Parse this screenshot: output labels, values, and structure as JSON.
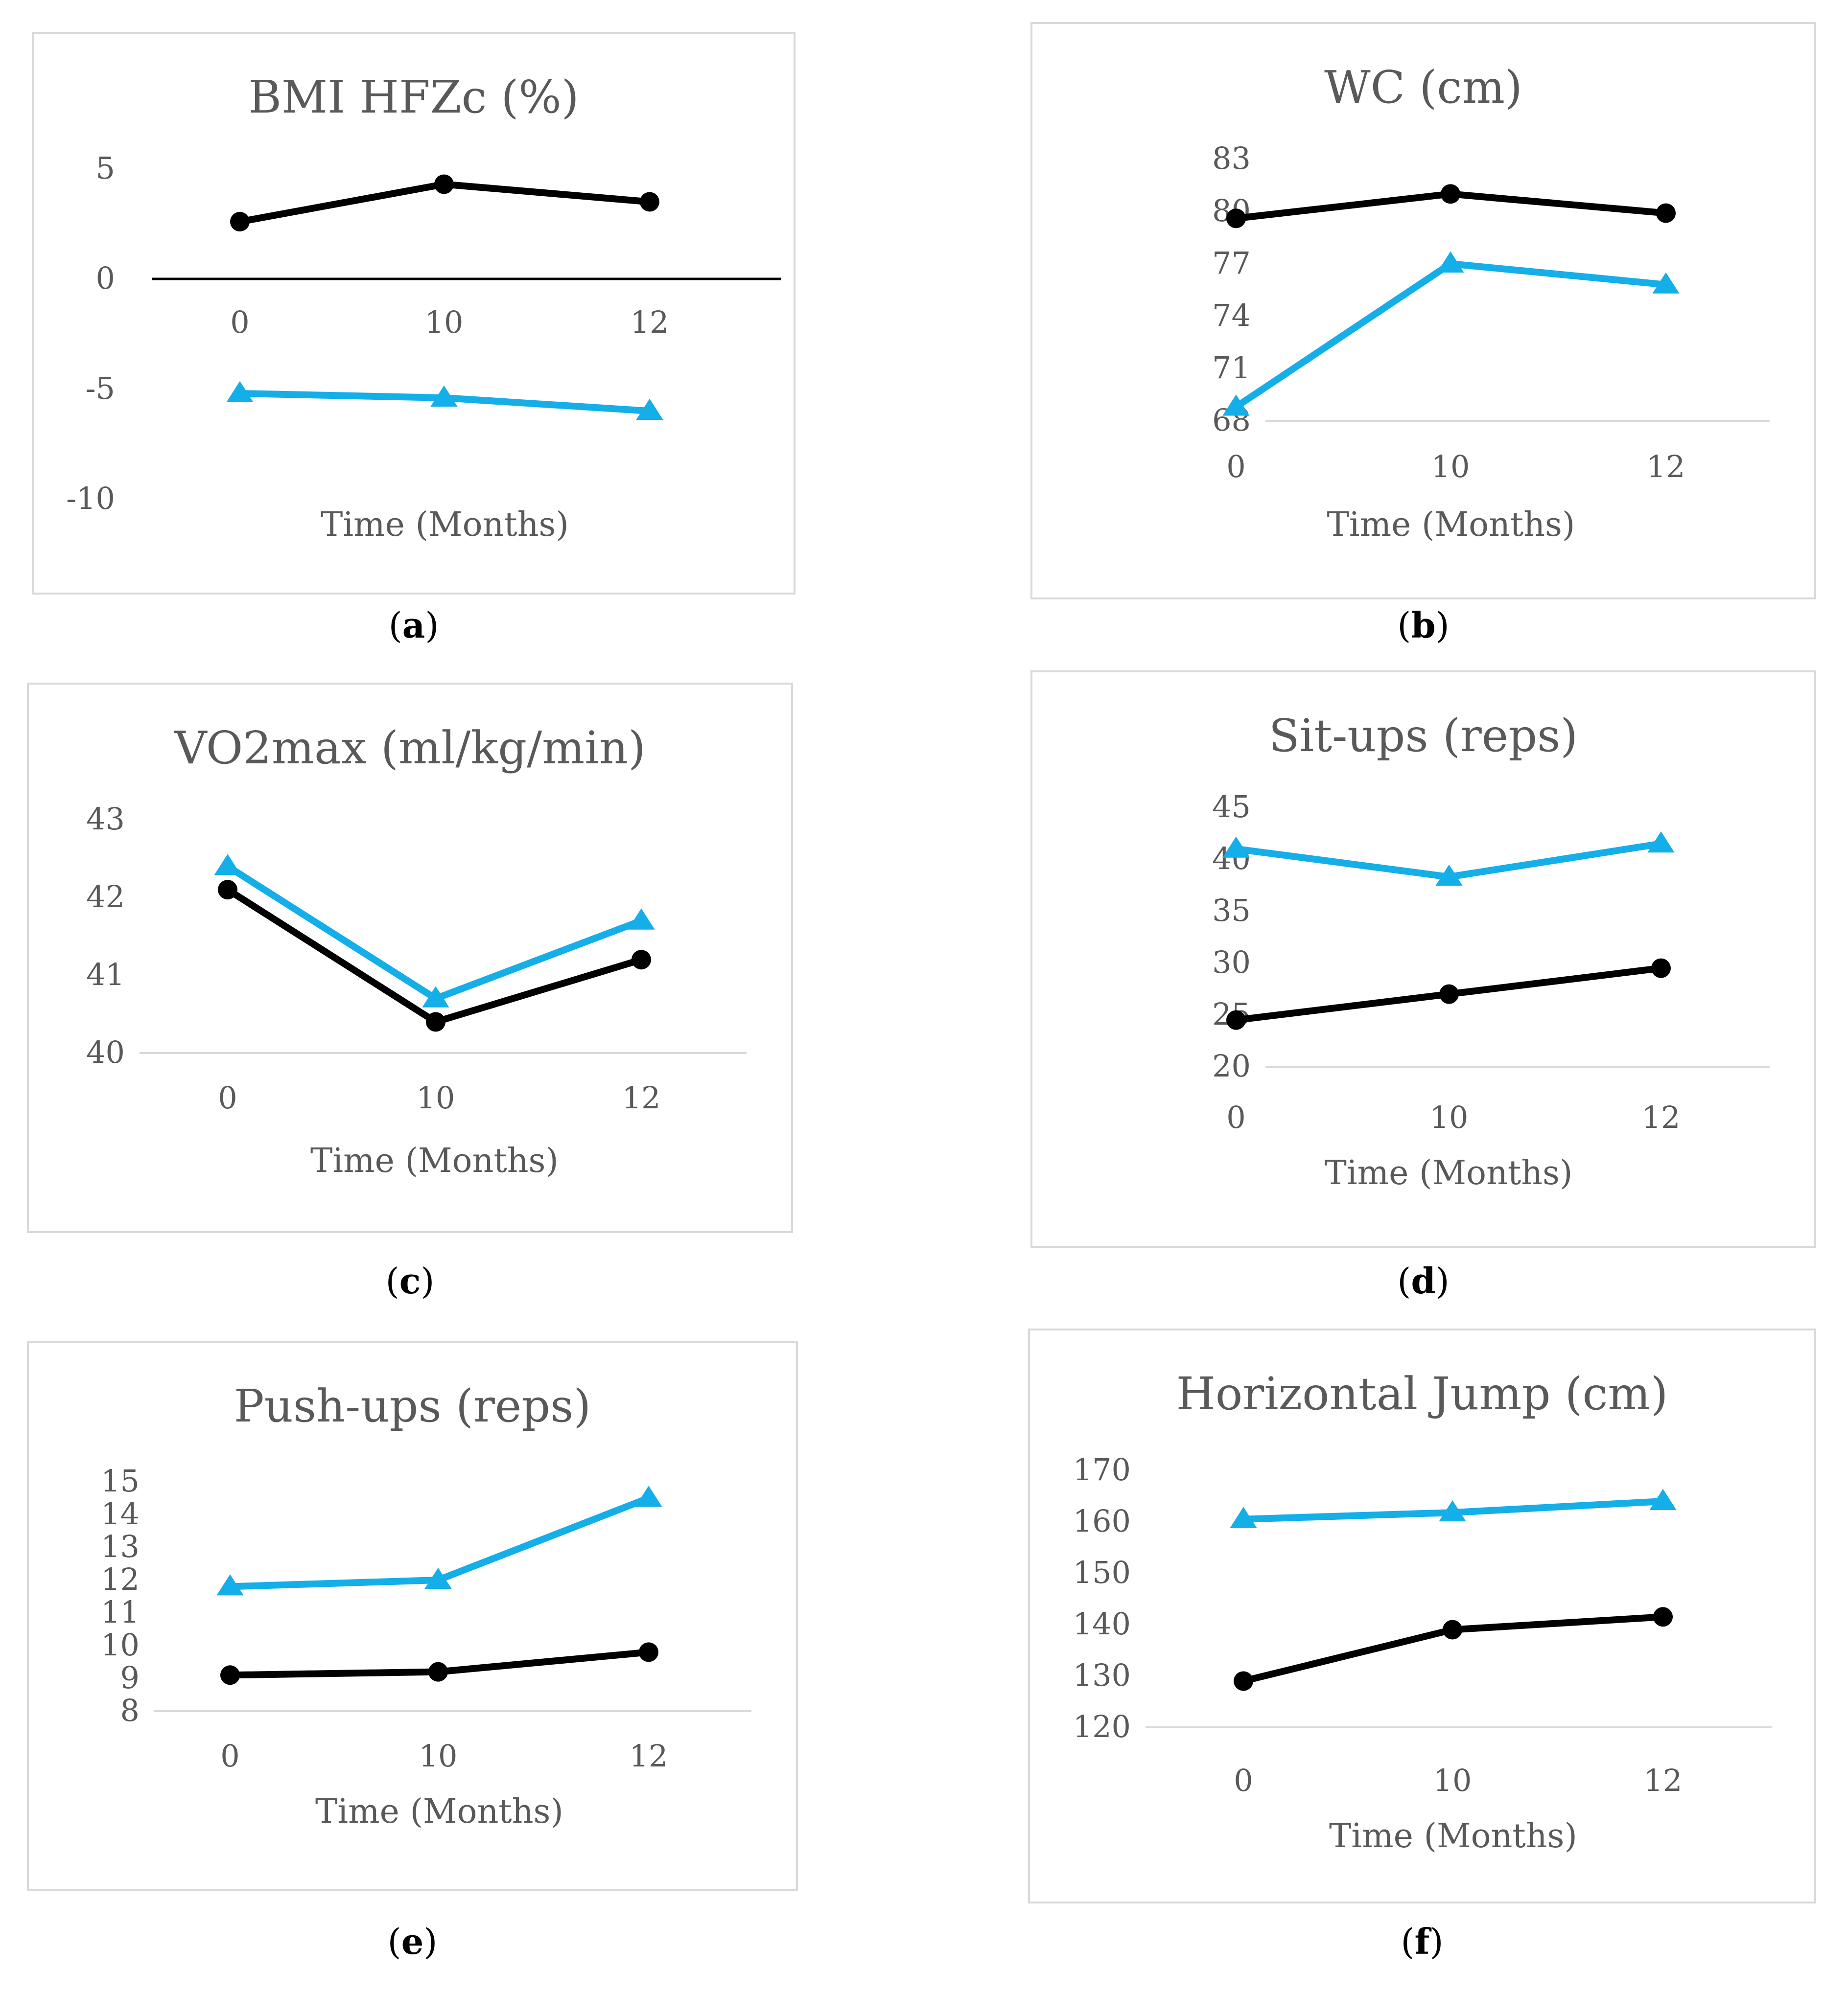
{
  "colors": {
    "black_series": "#000000",
    "blue_series": "#14aee8"
  },
  "chart_data": [
    {
      "id": "a",
      "type": "line",
      "title": "BMI HFZc (%)",
      "xlabel": "Time (Months)",
      "caption": "a",
      "categories": [
        "0",
        "10",
        "12"
      ],
      "yticks": [
        "5",
        "0",
        "-5",
        "-10"
      ],
      "ylim": [
        -10,
        5
      ],
      "zero_axis": true,
      "series": [
        {
          "marker": "circle",
          "color": "#000000",
          "values": [
            2.6,
            4.3,
            3.5
          ]
        },
        {
          "marker": "triangle",
          "color": "#14aee8",
          "values": [
            -5.2,
            -5.4,
            -6.0
          ]
        }
      ]
    },
    {
      "id": "b",
      "type": "line",
      "title": "WC (cm)",
      "xlabel": "Time (Months)",
      "caption": "b",
      "categories": [
        "0",
        "10",
        "12"
      ],
      "yticks": [
        "83",
        "80",
        "77",
        "74",
        "71",
        "68"
      ],
      "ylim": [
        68,
        83
      ],
      "zero_axis": false,
      "series": [
        {
          "marker": "circle",
          "color": "#000000",
          "values": [
            79.6,
            81.0,
            79.9
          ]
        },
        {
          "marker": "triangle",
          "color": "#14aee8",
          "values": [
            68.8,
            77.0,
            75.8
          ]
        }
      ]
    },
    {
      "id": "c",
      "type": "line",
      "title": "VO2max (ml/kg/min)",
      "xlabel": "Time (Months)",
      "caption": "c",
      "categories": [
        "0",
        "10",
        "12"
      ],
      "yticks": [
        "43",
        "42",
        "41",
        "40"
      ],
      "ylim": [
        40,
        43
      ],
      "zero_axis": false,
      "series": [
        {
          "marker": "circle",
          "color": "#000000",
          "values": [
            42.1,
            40.4,
            41.2
          ]
        },
        {
          "marker": "triangle",
          "color": "#14aee8",
          "values": [
            42.4,
            40.7,
            41.7
          ]
        }
      ]
    },
    {
      "id": "d",
      "type": "line",
      "title": "Sit-ups (reps)",
      "xlabel": "Time (Months)",
      "caption": "d",
      "categories": [
        "0",
        "10",
        "12"
      ],
      "yticks": [
        "45",
        "40",
        "35",
        "30",
        "25",
        "20"
      ],
      "ylim": [
        20,
        45
      ],
      "zero_axis": false,
      "series": [
        {
          "marker": "circle",
          "color": "#000000",
          "values": [
            24.5,
            27.0,
            29.5
          ]
        },
        {
          "marker": "triangle",
          "color": "#14aee8",
          "values": [
            41.0,
            38.3,
            41.5
          ]
        }
      ]
    },
    {
      "id": "e",
      "type": "line",
      "title": "Push-ups (reps)",
      "xlabel": "Time (Months)",
      "caption": "e",
      "categories": [
        "0",
        "10",
        "12"
      ],
      "yticks": [
        "15",
        "14",
        "13",
        "12",
        "11",
        "10",
        "9",
        "8"
      ],
      "ylim": [
        8,
        15
      ],
      "zero_axis": false,
      "series": [
        {
          "marker": "circle",
          "color": "#000000",
          "values": [
            9.1,
            9.2,
            9.8
          ]
        },
        {
          "marker": "triangle",
          "color": "#14aee8",
          "values": [
            11.8,
            12.0,
            14.5
          ]
        }
      ]
    },
    {
      "id": "f",
      "type": "line",
      "title": "Horizontal Jump (cm)",
      "xlabel": "Time (Months)",
      "caption": "f",
      "categories": [
        "0",
        "10",
        "12"
      ],
      "yticks": [
        "170",
        "160",
        "150",
        "140",
        "130",
        "120"
      ],
      "ylim": [
        120,
        170
      ],
      "zero_axis": false,
      "series": [
        {
          "marker": "circle",
          "color": "#000000",
          "values": [
            129.0,
            139.0,
            141.5
          ]
        },
        {
          "marker": "triangle",
          "color": "#14aee8",
          "values": [
            160.5,
            161.8,
            164.0
          ]
        }
      ]
    }
  ]
}
